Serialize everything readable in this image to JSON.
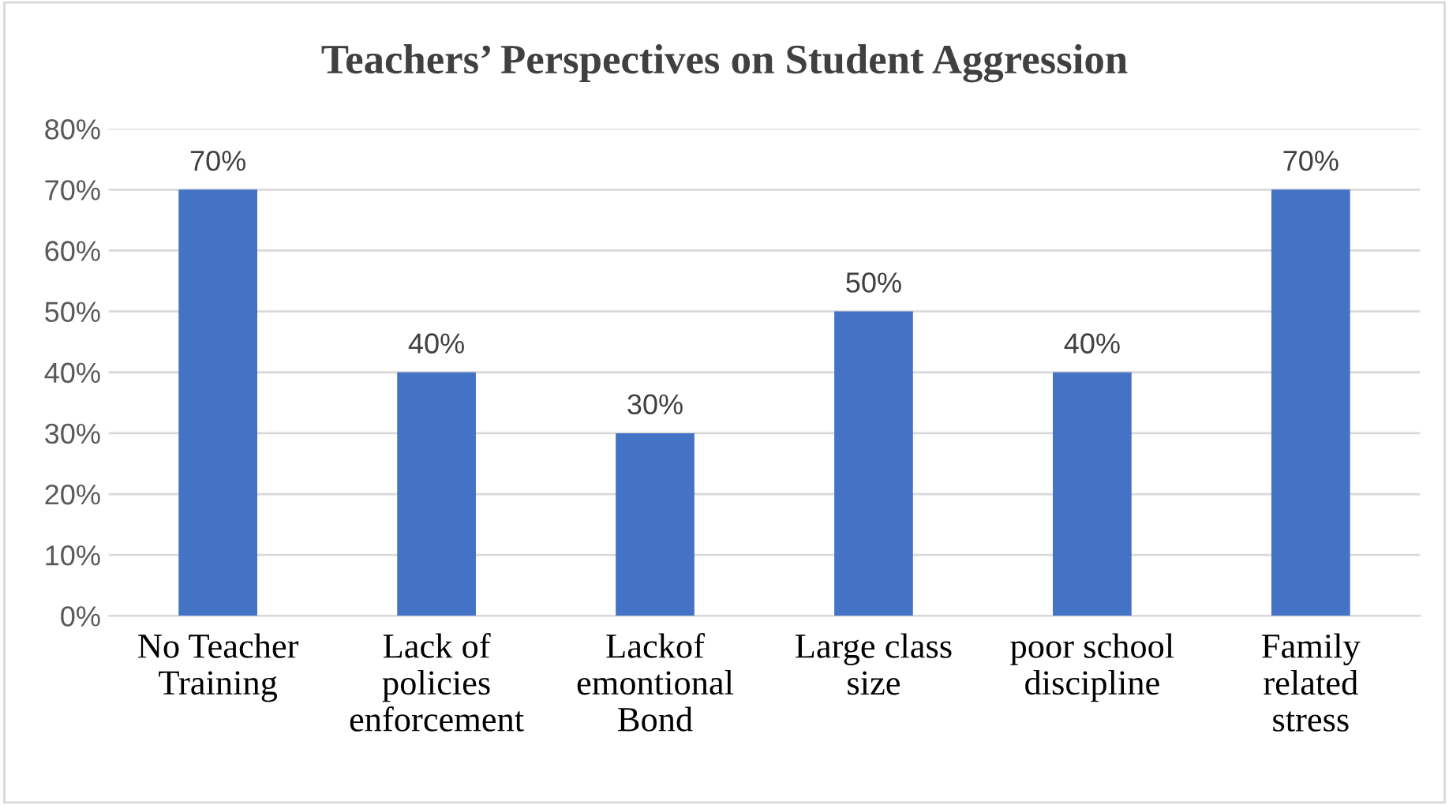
{
  "chart_data": {
    "type": "bar",
    "title": "Teachers’ Perspectives on Student Aggression",
    "categories": [
      "No Teacher Training",
      "Lack of policies enforcement",
      "Lackof emontional Bond",
      "Large class size",
      "poor school discipline",
      "Family related stress"
    ],
    "values": [
      70,
      40,
      30,
      50,
      40,
      70
    ],
    "value_labels": [
      "70%",
      "40%",
      "30%",
      "50%",
      "40%",
      "70%"
    ],
    "color": "#4472c4",
    "ylim": [
      0,
      80
    ],
    "yticks": [
      {
        "value": 0,
        "label": "0%"
      },
      {
        "value": 10,
        "label": "10%"
      },
      {
        "value": 20,
        "label": "20%"
      },
      {
        "value": 30,
        "label": "30%"
      },
      {
        "value": 40,
        "label": "40%"
      },
      {
        "value": 50,
        "label": "50%"
      },
      {
        "value": 60,
        "label": "60%"
      },
      {
        "value": 70,
        "label": "70%"
      },
      {
        "value": 80,
        "label": "80%"
      }
    ],
    "grid": "y"
  }
}
